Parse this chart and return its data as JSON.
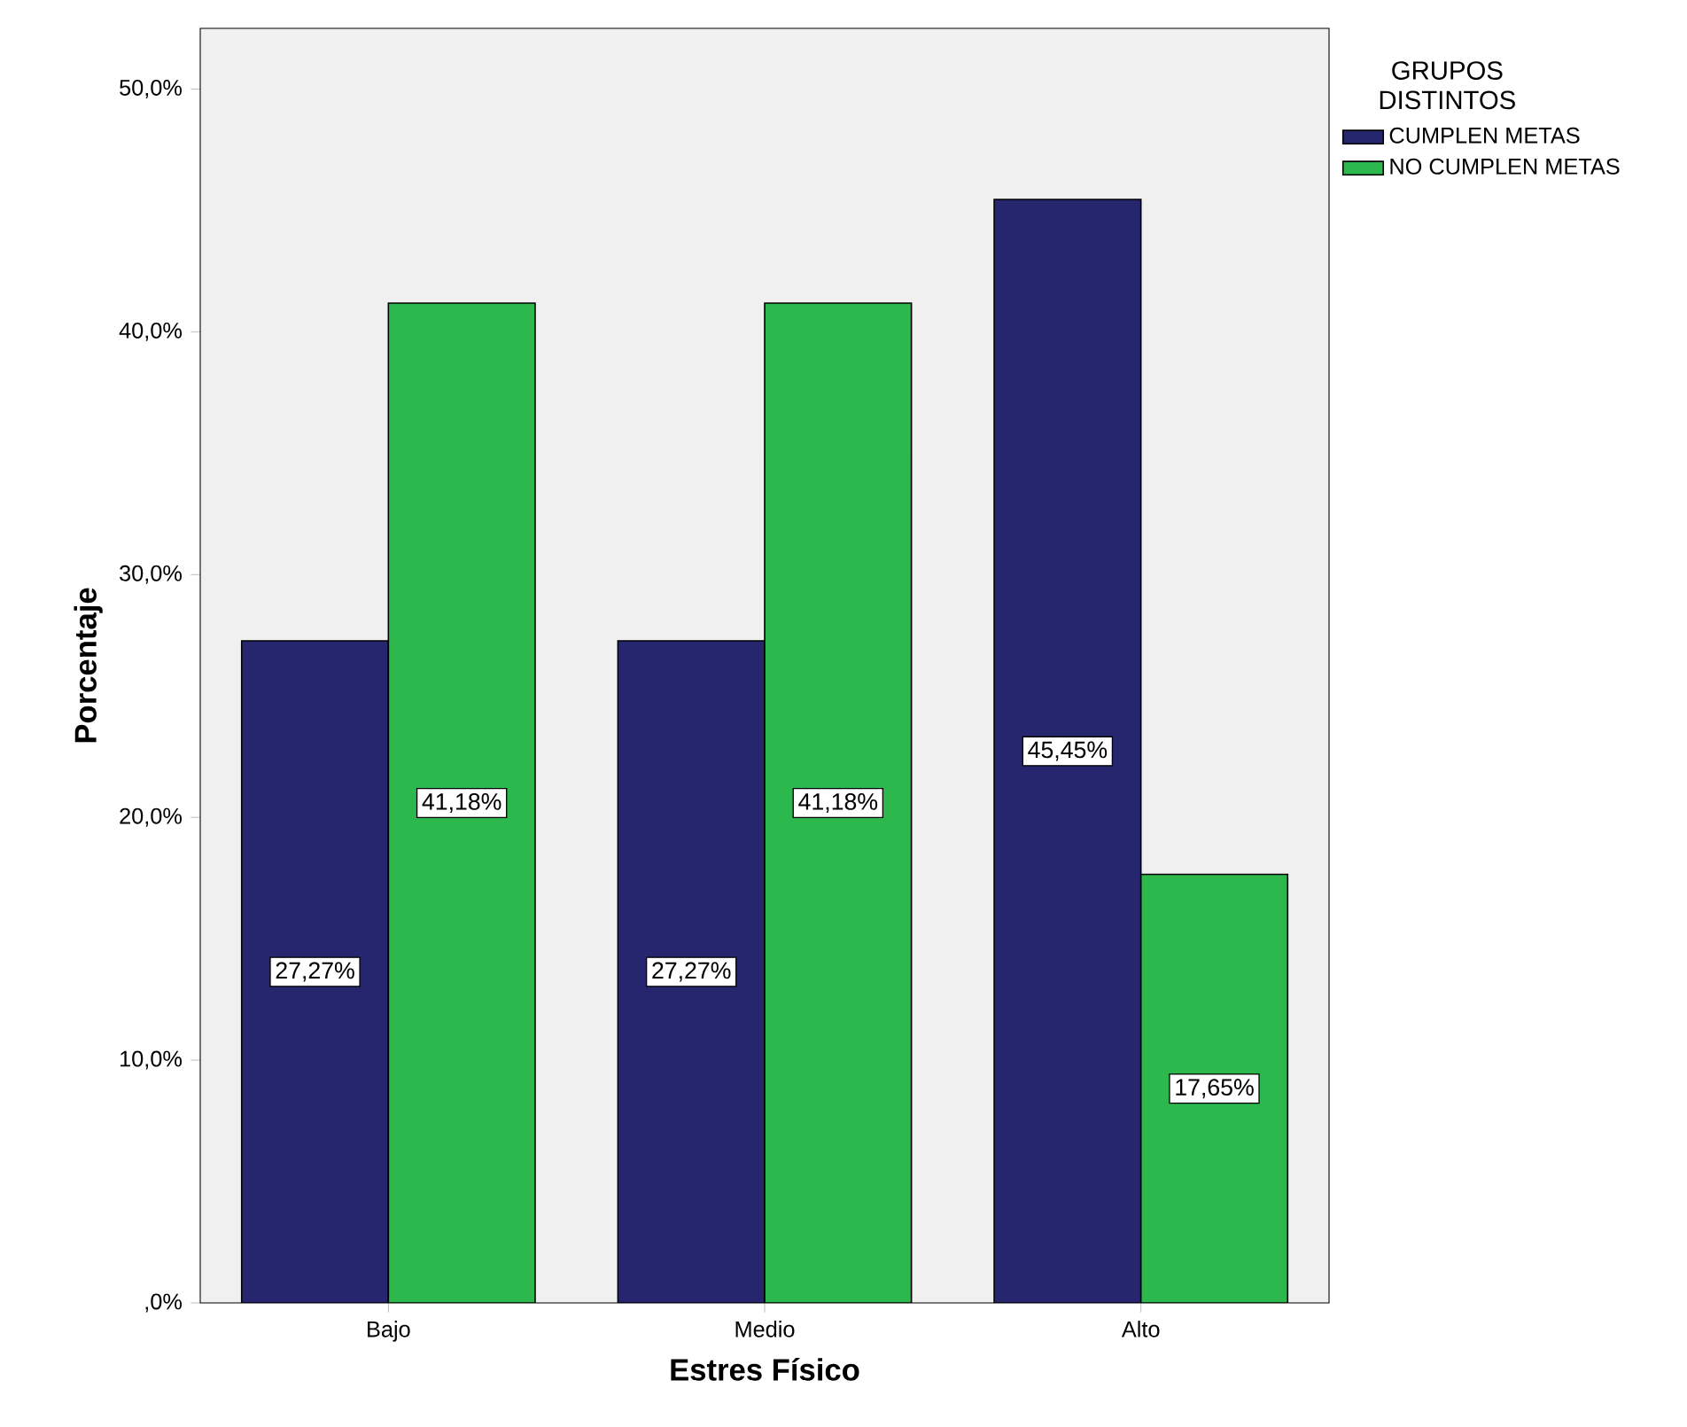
{
  "chart_data": {
    "type": "bar",
    "xlabel": "Estres Físico",
    "ylabel": "Porcentaje",
    "legend_title": "GRUPOS DISTINTOS",
    "categories": [
      "Bajo",
      "Medio",
      "Alto"
    ],
    "series": [
      {
        "name": "CUMPLEN METAS",
        "color": "#26266e",
        "values": [
          27.27,
          27.27,
          45.45
        ],
        "value_labels": [
          "27,27%",
          "27,27%",
          "45,45%"
        ]
      },
      {
        "name": "NO CUMPLEN METAS",
        "color": "#2db84d",
        "values": [
          41.18,
          41.18,
          17.65
        ],
        "value_labels": [
          "41,18%",
          "41,18%",
          "17,65%"
        ]
      }
    ],
    "ylim": [
      0,
      52.5
    ],
    "yticks": [
      {
        "value": 0,
        "label": ",0%"
      },
      {
        "value": 10,
        "label": "10,0%"
      },
      {
        "value": 20,
        "label": "20,0%"
      },
      {
        "value": 30,
        "label": "30,0%"
      },
      {
        "value": 40,
        "label": "40,0%"
      },
      {
        "value": 50,
        "label": "50,0%"
      }
    ],
    "grid": false,
    "legend": "top right"
  }
}
